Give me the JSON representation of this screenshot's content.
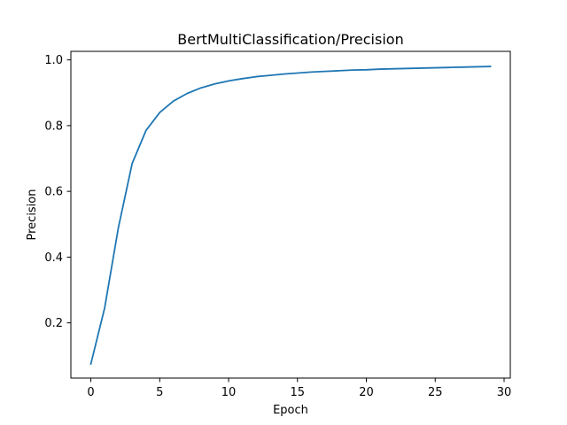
{
  "chart_data": {
    "type": "line",
    "title": "BertMultiClassification/Precision",
    "xlabel": "Epoch",
    "ylabel": "Precision",
    "xlim": [
      -1.45,
      30.45
    ],
    "ylim": [
      0.032,
      1.026
    ],
    "xticks": [
      0,
      5,
      10,
      15,
      20,
      25,
      30
    ],
    "yticks": [
      0.2,
      0.4,
      0.6,
      0.8,
      1.0
    ],
    "xtick_labels": [
      "0",
      "5",
      "10",
      "15",
      "20",
      "25",
      "30"
    ],
    "ytick_labels": [
      "0.2",
      "0.4",
      "0.6",
      "0.8",
      "1.0"
    ],
    "grid": false,
    "series": [
      {
        "color": "#1f77b4",
        "x": [
          0,
          1,
          2,
          3,
          4,
          5,
          6,
          7,
          8,
          9,
          10,
          11,
          12,
          13,
          14,
          15,
          16,
          17,
          18,
          19,
          20,
          21,
          22,
          23,
          24,
          25,
          26,
          27,
          28,
          29
        ],
        "y": [
          0.075,
          0.245,
          0.49,
          0.685,
          0.785,
          0.84,
          0.875,
          0.898,
          0.915,
          0.927,
          0.936,
          0.943,
          0.949,
          0.953,
          0.957,
          0.96,
          0.963,
          0.965,
          0.967,
          0.969,
          0.97,
          0.972,
          0.973,
          0.974,
          0.975,
          0.976,
          0.977,
          0.978,
          0.979,
          0.98
        ]
      }
    ]
  }
}
